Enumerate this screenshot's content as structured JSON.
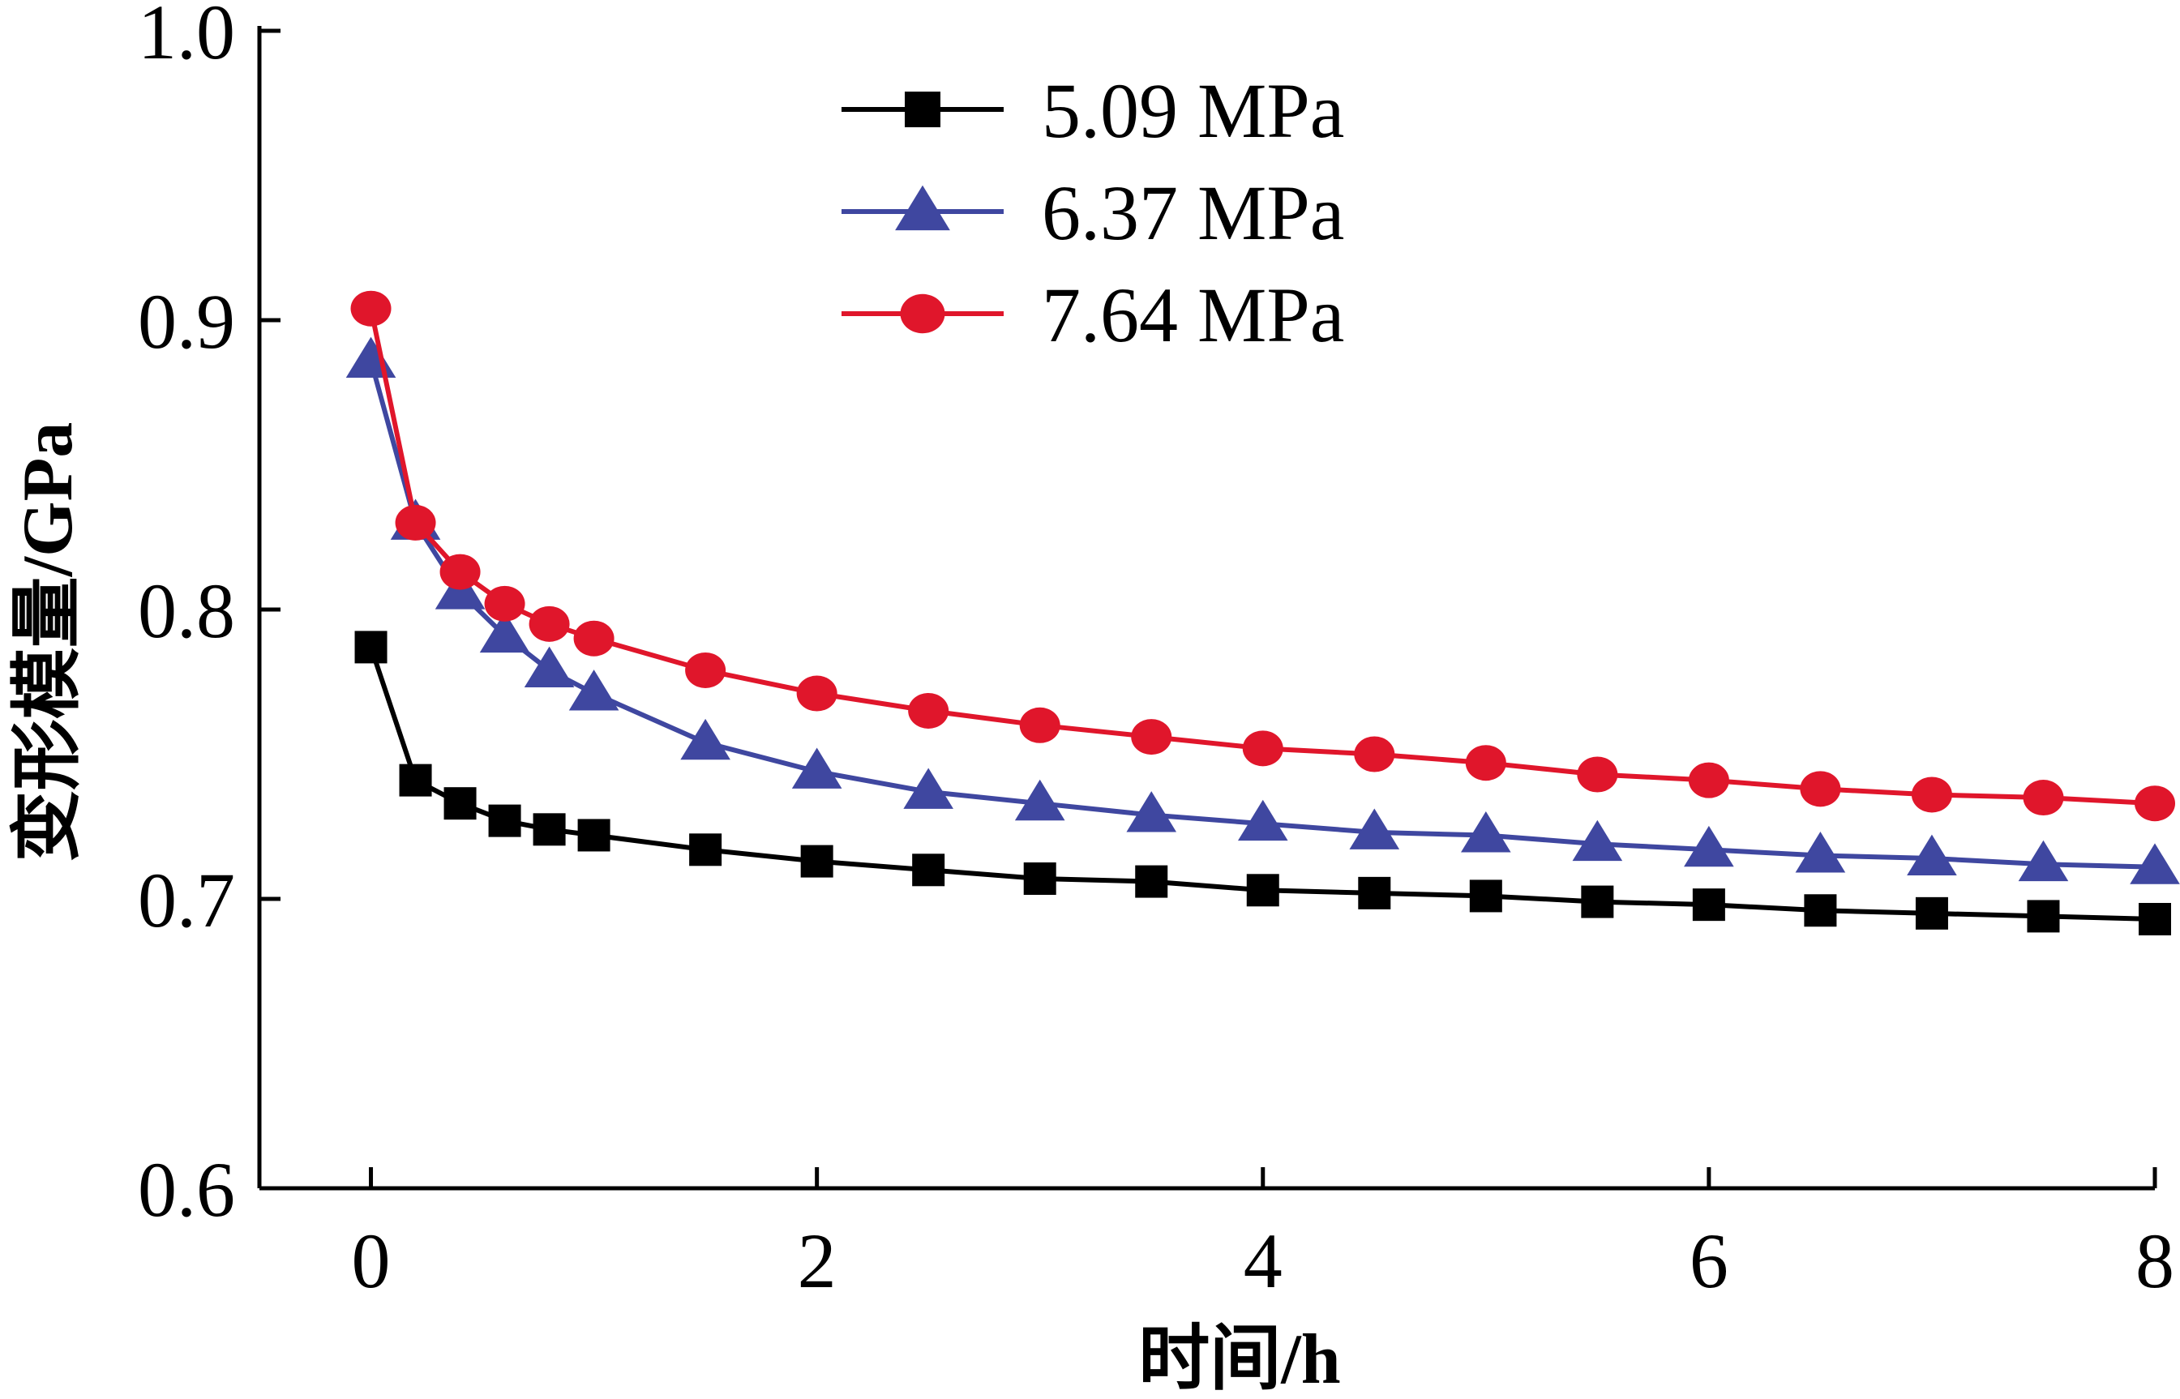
{
  "chart_data": {
    "type": "line",
    "xlabel": "时间/h",
    "ylabel": "变形模量/GPa",
    "xlim": [
      -0.5,
      8
    ],
    "ylim": [
      0.6,
      1.0
    ],
    "xticks": [
      "0",
      "2",
      "4",
      "6",
      "8"
    ],
    "yticks": [
      "0.6",
      "0.7",
      "0.8",
      "0.9",
      "1.0"
    ],
    "grid": false,
    "legend_position": "top-center",
    "series": [
      {
        "name": "5.09 MPa",
        "color": "#000000",
        "marker": "square",
        "x": [
          0,
          0.2,
          0.4,
          0.6,
          0.8,
          1,
          1.5,
          2,
          2.5,
          3,
          3.5,
          4,
          4.5,
          5,
          5.5,
          6,
          6.5,
          7,
          7.5,
          8
        ],
        "y": [
          0.787,
          0.741,
          0.733,
          0.727,
          0.724,
          0.722,
          0.717,
          0.713,
          0.71,
          0.707,
          0.706,
          0.703,
          0.702,
          0.701,
          0.699,
          0.698,
          0.696,
          0.695,
          0.694,
          0.693
        ]
      },
      {
        "name": "6.37 MPa",
        "color": "#3f47a0",
        "marker": "triangle",
        "x": [
          0,
          0.2,
          0.4,
          0.6,
          0.8,
          1,
          1.5,
          2,
          2.5,
          3,
          3.5,
          4,
          4.5,
          5,
          5.5,
          6,
          6.5,
          7,
          7.5,
          8
        ],
        "y": [
          0.886,
          0.83,
          0.806,
          0.791,
          0.779,
          0.771,
          0.754,
          0.744,
          0.737,
          0.733,
          0.729,
          0.726,
          0.723,
          0.722,
          0.719,
          0.717,
          0.715,
          0.714,
          0.712,
          0.711
        ]
      },
      {
        "name": "7.64 MPa",
        "color": "#e0162b",
        "marker": "circle",
        "x": [
          0,
          0.2,
          0.4,
          0.6,
          0.8,
          1,
          1.5,
          2,
          2.5,
          3,
          3.5,
          4,
          4.5,
          5,
          5.5,
          6,
          6.5,
          7,
          7.5,
          8
        ],
        "y": [
          0.904,
          0.83,
          0.813,
          0.802,
          0.795,
          0.79,
          0.779,
          0.771,
          0.765,
          0.76,
          0.756,
          0.752,
          0.75,
          0.747,
          0.743,
          0.741,
          0.738,
          0.736,
          0.735,
          0.733
        ]
      }
    ]
  }
}
